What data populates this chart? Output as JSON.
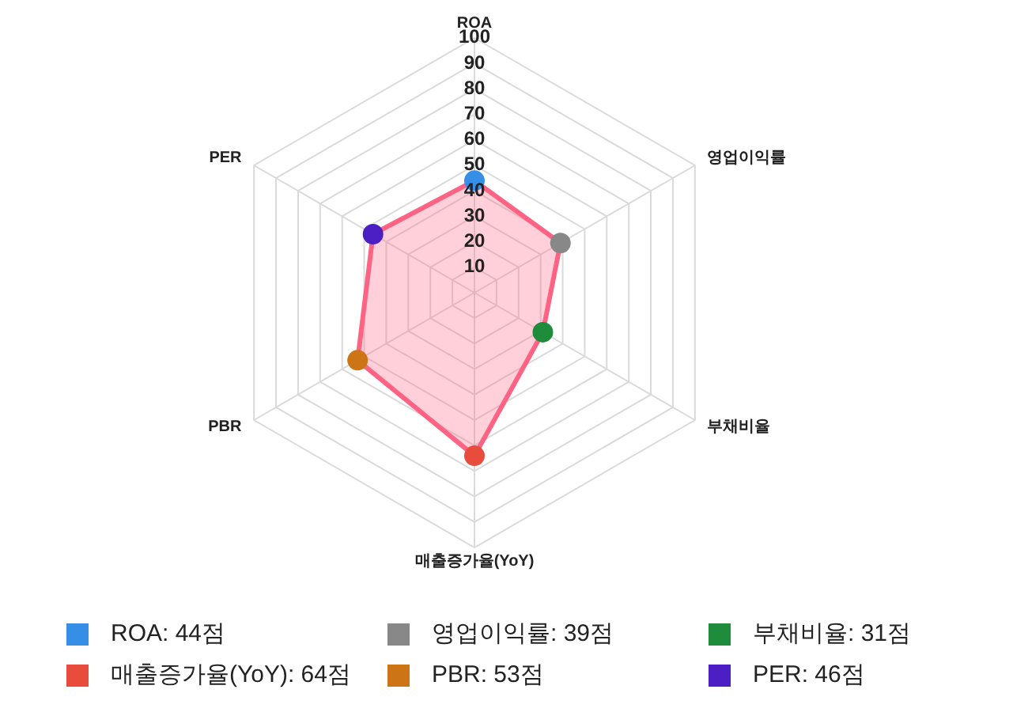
{
  "chart_data": {
    "type": "radar",
    "categories": [
      "ROA",
      "영업이익률",
      "부채비율",
      "매출증가율(YoY)",
      "PBR",
      "PER"
    ],
    "series": [
      {
        "color": "#ff6384",
        "colors": [
          "#368ee6",
          "#888888",
          "#1e8c3a",
          "#e84c3d",
          "#cc7416",
          "#4b1fc3"
        ],
        "values": [
          44,
          39,
          31,
          64,
          53,
          46
        ]
      }
    ],
    "annotations": [
      "ROA: 44점",
      "영업이익률: 39점",
      "부채비율: 31점",
      "매출증가율(YoY): 64점",
      "PBR: 53점",
      "PER: 46점"
    ],
    "ylim": [
      0,
      100
    ],
    "yticks": [
      10,
      20,
      30,
      40,
      50,
      60,
      70,
      80,
      90,
      100
    ],
    "grid": true,
    "marker": "circle",
    "line_style": "solid"
  }
}
